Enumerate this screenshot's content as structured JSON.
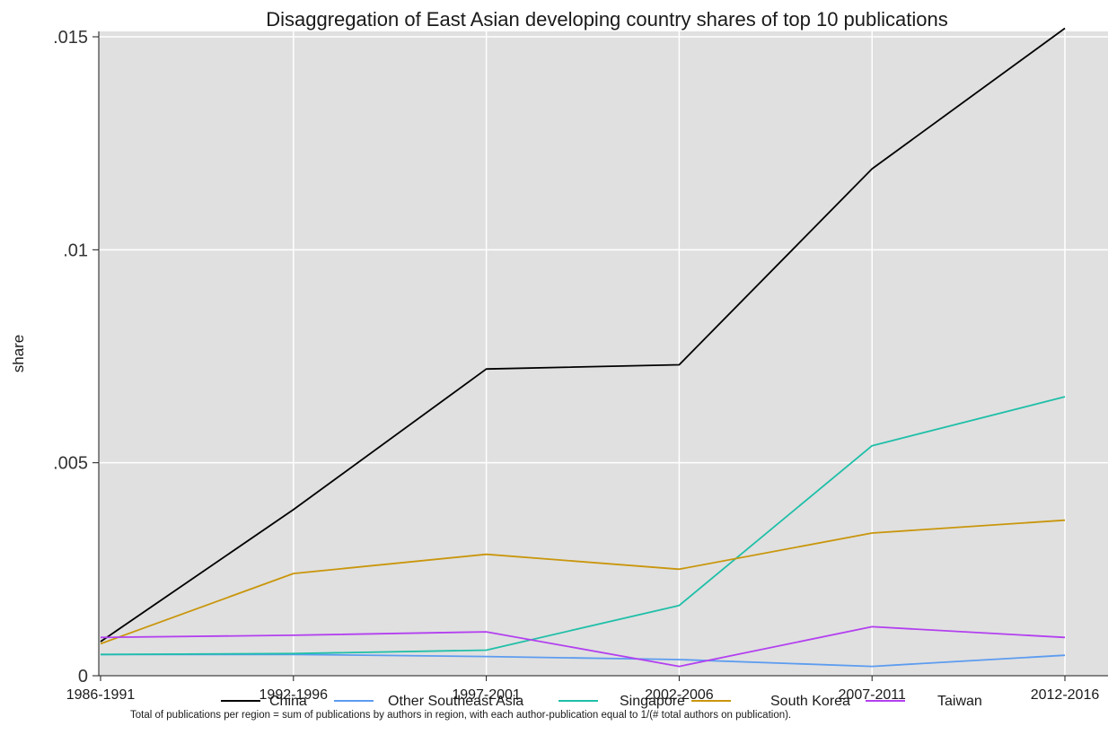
{
  "chart_data": {
    "type": "line",
    "title": "Disaggregation of East Asian developing country shares of top 10 publications",
    "ylabel": "share",
    "xlabel": "",
    "categories": [
      "1986-1991",
      "1992-1996",
      "1997-2001",
      "2002-2006",
      "2007-2011",
      "2012-2016"
    ],
    "ylim": [
      0,
      0.0152
    ],
    "yticks": [
      {
        "value": 0,
        "label": "0"
      },
      {
        "value": 0.005,
        "label": ".005"
      },
      {
        "value": 0.01,
        "label": ".01"
      },
      {
        "value": 0.015,
        "label": ".015"
      }
    ],
    "grid": true,
    "legend_position": "bottom",
    "note": "Total of publications per region = sum of publications by authors in region, with each author-publication equal to 1/(# total authors on publication).",
    "plot_background": "#e0e0e0",
    "series": [
      {
        "name": "China",
        "color": "#000000",
        "values": [
          0.0008,
          0.0039,
          0.0072,
          0.0073,
          0.0119,
          0.0152
        ]
      },
      {
        "name": "Other Southeast Asia",
        "color": "#5c9cf0",
        "values": [
          0.0005,
          0.0005,
          0.00045,
          0.00038,
          0.00022,
          0.00048
        ]
      },
      {
        "name": "Singapore",
        "color": "#1fbfa8",
        "values": [
          0.0005,
          0.00052,
          0.0006,
          0.00165,
          0.0054,
          0.00655
        ]
      },
      {
        "name": "South Korea",
        "color": "#c9960c",
        "values": [
          0.00075,
          0.0024,
          0.00285,
          0.0025,
          0.00335,
          0.00365
        ]
      },
      {
        "name": "Taiwan",
        "color": "#b340f0",
        "values": [
          0.0009,
          0.00095,
          0.00103,
          0.00022,
          0.00115,
          0.0009
        ]
      }
    ]
  }
}
